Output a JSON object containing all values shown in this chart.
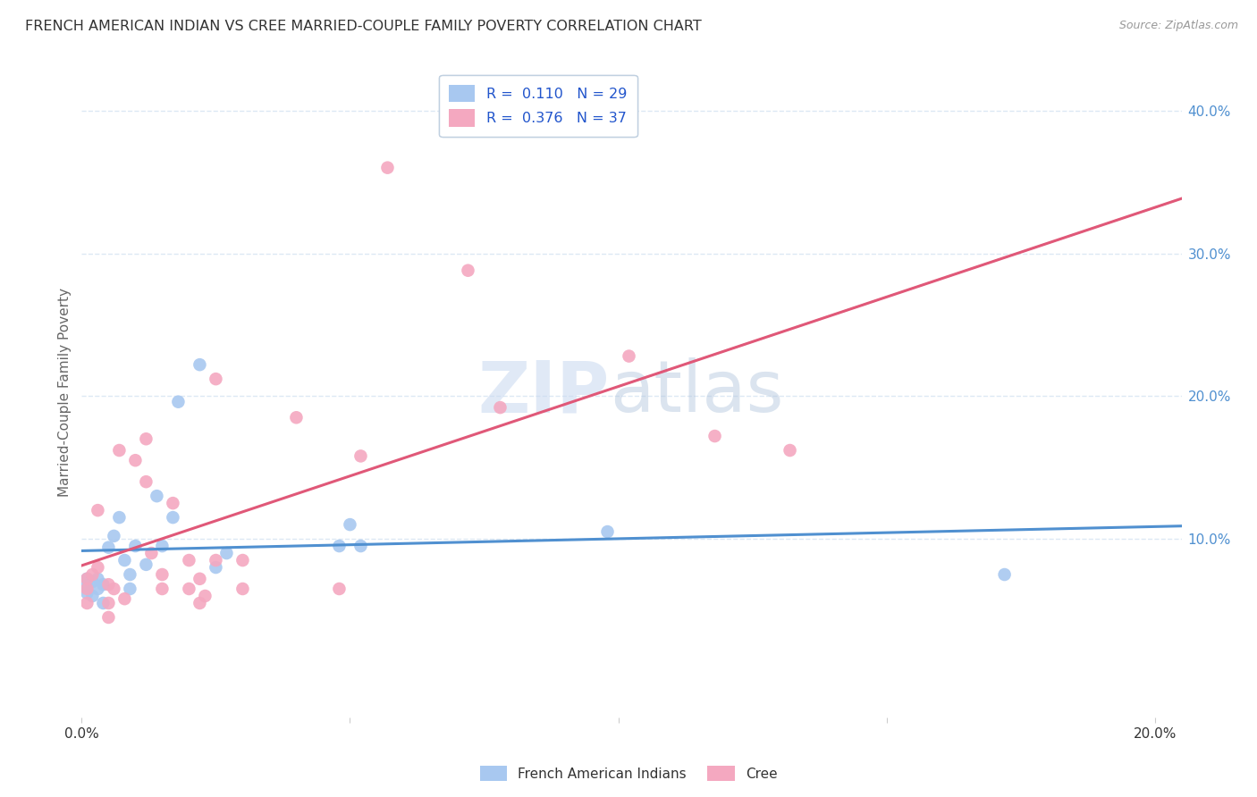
{
  "title": "FRENCH AMERICAN INDIAN VS CREE MARRIED-COUPLE FAMILY POVERTY CORRELATION CHART",
  "source": "Source: ZipAtlas.com",
  "ylabel": "Married-Couple Family Poverty",
  "xlim": [
    0.0,
    0.205
  ],
  "ylim": [
    -0.025,
    0.43
  ],
  "color_blue": "#A8C8F0",
  "color_pink": "#F4A8C0",
  "color_blue_line": "#5090D0",
  "color_pink_line": "#E05878",
  "color_title": "#333333",
  "color_axis_label": "#666666",
  "color_right_tick": "#5090D0",
  "grid_color": "#DCE8F4",
  "background_color": "#FFFFFF",
  "legend_text_color": "#2255CC",
  "r1": 0.11,
  "n1": 29,
  "r2": 0.376,
  "n2": 37,
  "french_x": [
    0.001,
    0.001,
    0.001,
    0.002,
    0.002,
    0.003,
    0.003,
    0.004,
    0.004,
    0.005,
    0.006,
    0.007,
    0.008,
    0.009,
    0.009,
    0.01,
    0.012,
    0.014,
    0.015,
    0.017,
    0.018,
    0.022,
    0.025,
    0.027,
    0.048,
    0.05,
    0.052,
    0.098,
    0.172
  ],
  "french_y": [
    0.072,
    0.067,
    0.062,
    0.07,
    0.06,
    0.072,
    0.065,
    0.068,
    0.055,
    0.094,
    0.102,
    0.115,
    0.085,
    0.075,
    0.065,
    0.095,
    0.082,
    0.13,
    0.095,
    0.115,
    0.196,
    0.222,
    0.08,
    0.09,
    0.095,
    0.11,
    0.095,
    0.105,
    0.075
  ],
  "cree_x": [
    0.001,
    0.001,
    0.001,
    0.002,
    0.003,
    0.003,
    0.005,
    0.005,
    0.005,
    0.006,
    0.007,
    0.008,
    0.01,
    0.012,
    0.012,
    0.013,
    0.015,
    0.015,
    0.017,
    0.02,
    0.02,
    0.022,
    0.022,
    0.023,
    0.025,
    0.025,
    0.03,
    0.03,
    0.04,
    0.048,
    0.052,
    0.057,
    0.072,
    0.078,
    0.102,
    0.118,
    0.132
  ],
  "cree_y": [
    0.072,
    0.065,
    0.055,
    0.075,
    0.12,
    0.08,
    0.068,
    0.055,
    0.045,
    0.065,
    0.162,
    0.058,
    0.155,
    0.17,
    0.14,
    0.09,
    0.075,
    0.065,
    0.125,
    0.085,
    0.065,
    0.072,
    0.055,
    0.06,
    0.212,
    0.085,
    0.085,
    0.065,
    0.185,
    0.065,
    0.158,
    0.36,
    0.288,
    0.192,
    0.228,
    0.172,
    0.162
  ]
}
